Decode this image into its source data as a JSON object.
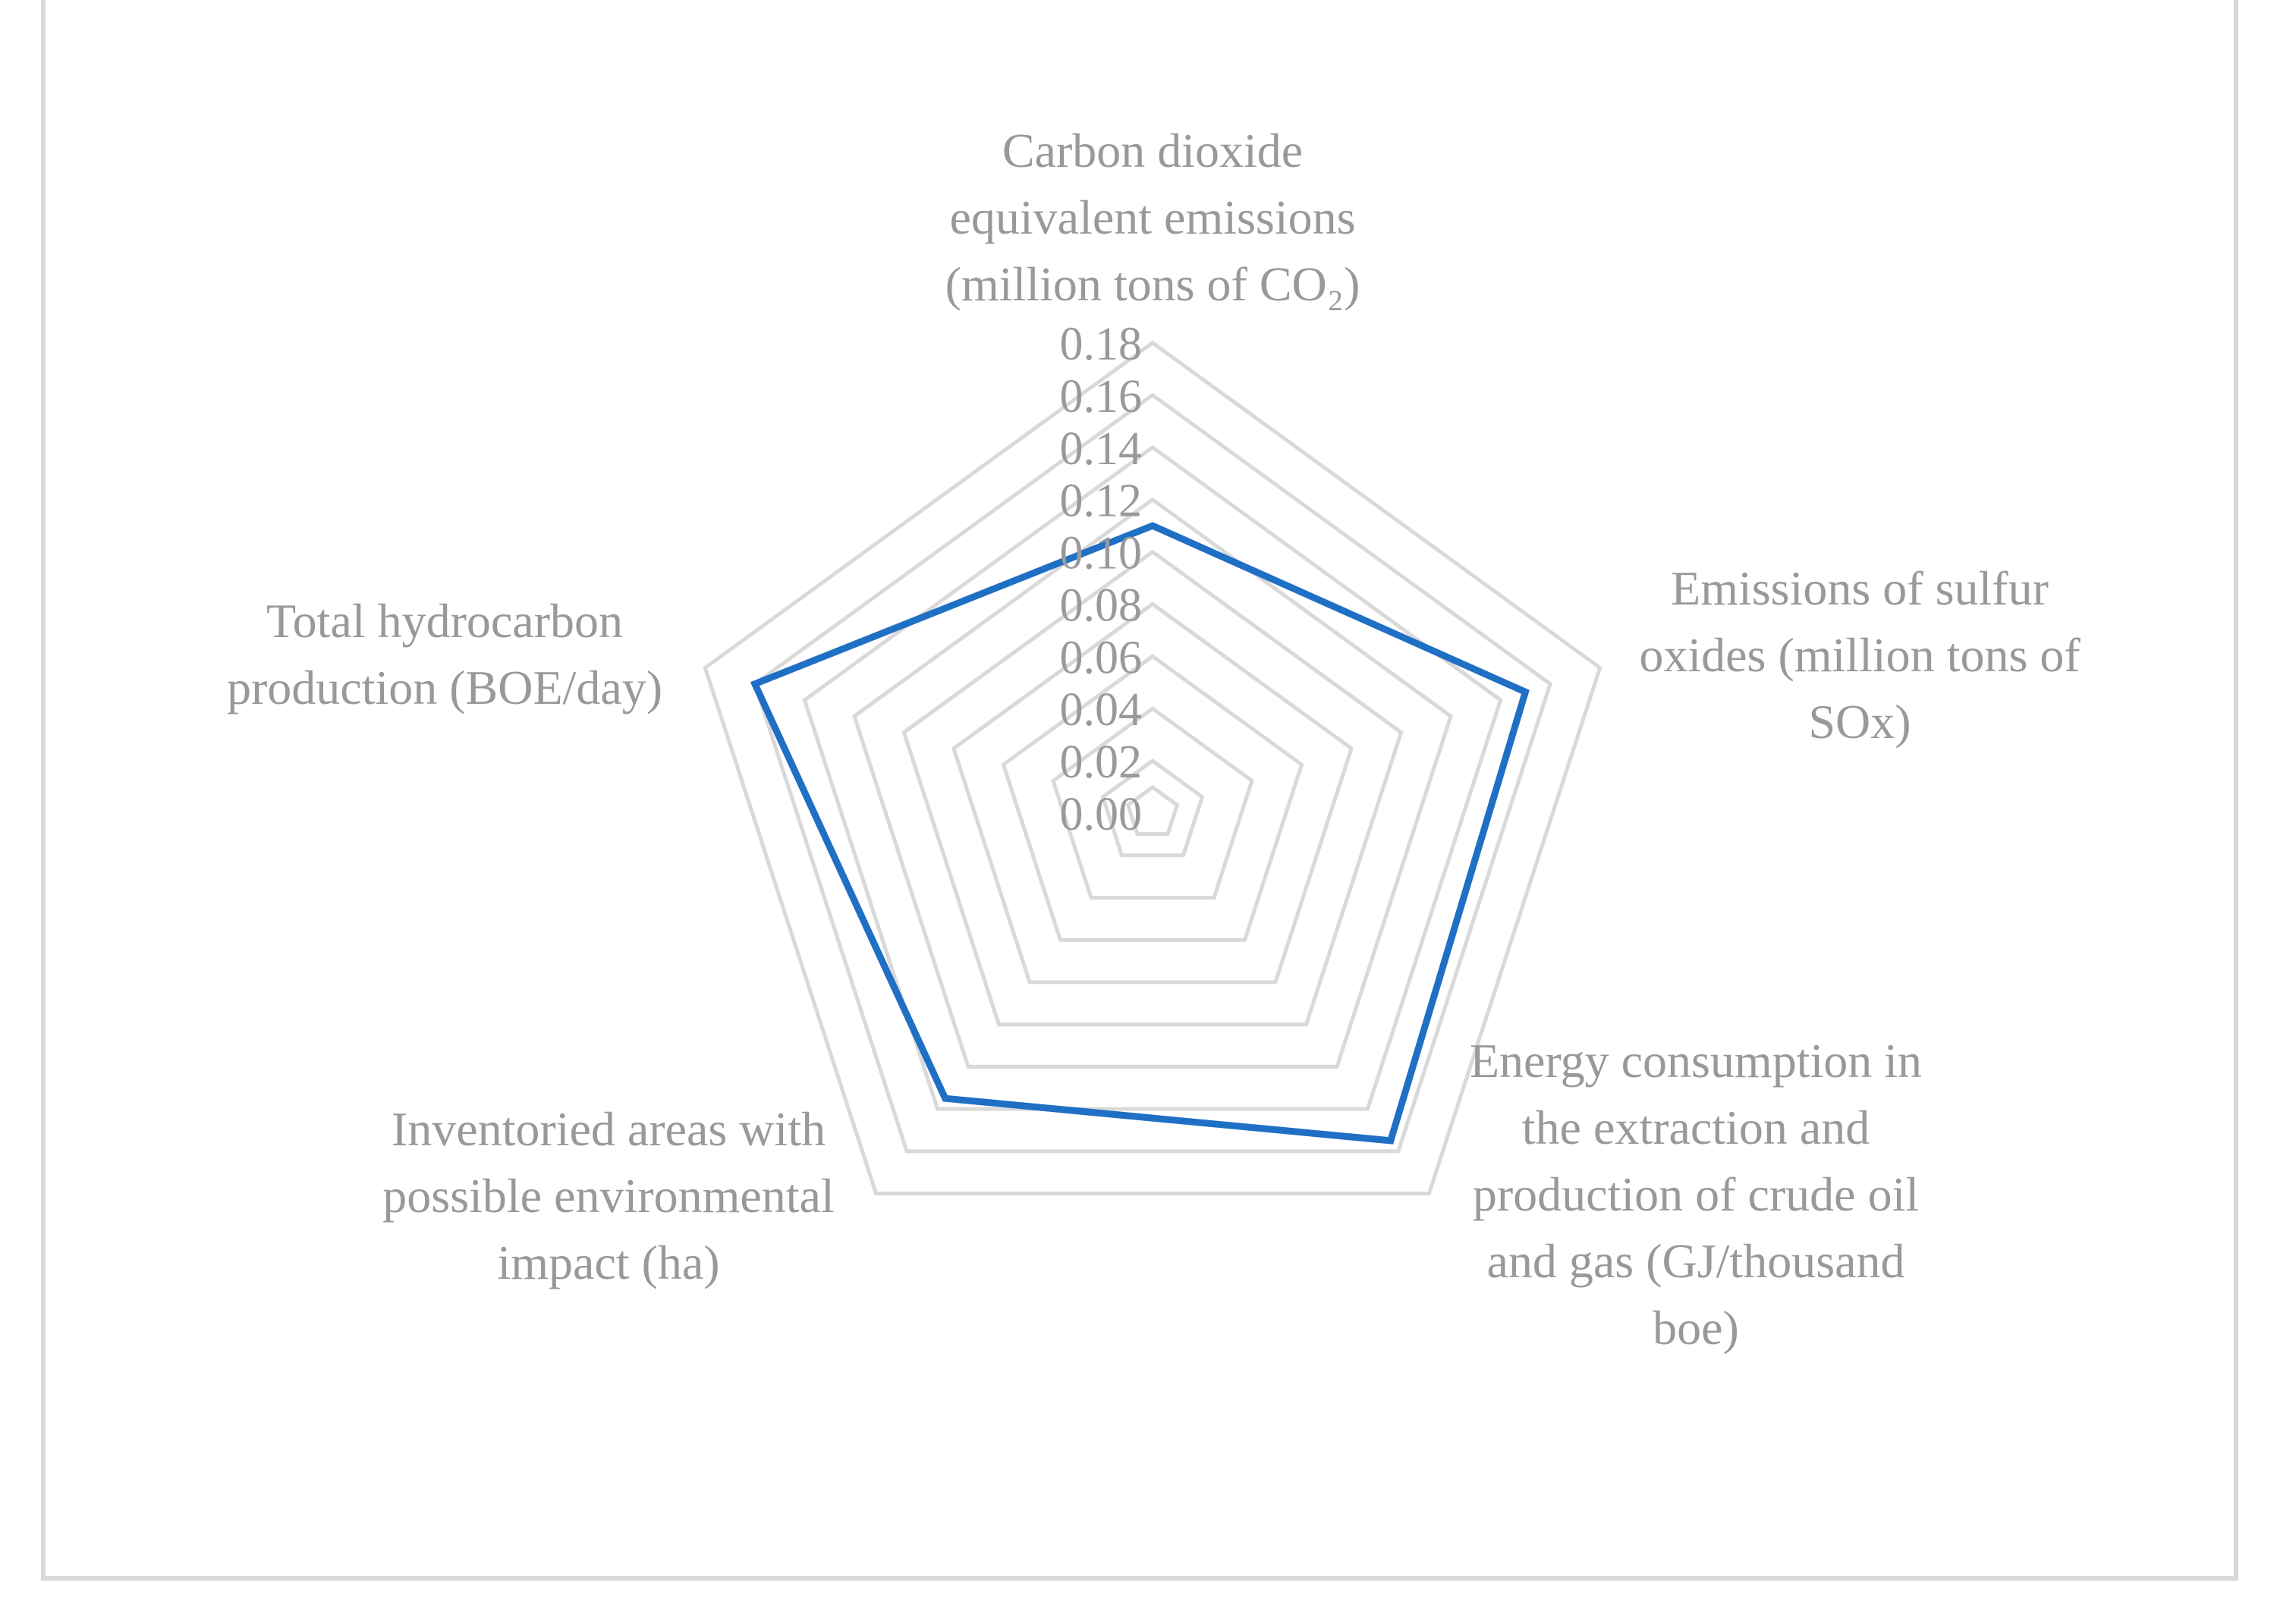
{
  "chart_data": {
    "type": "radar",
    "title": "",
    "axes": [
      {
        "lines": [
          "Carbon dioxide",
          "equivalent emissions",
          "(million tons of CO₂)"
        ]
      },
      {
        "lines": [
          "Emissions of sulfur",
          "oxides (million tons of",
          "SOx)"
        ]
      },
      {
        "lines": [
          "Energy consumption in",
          "the extraction and",
          "production of crude oil",
          "and gas (GJ/thousand",
          "boe)"
        ]
      },
      {
        "lines": [
          "Inventoried areas with",
          "possible environmental",
          "impact (ha)"
        ]
      },
      {
        "lines": [
          "Total hydrocarbon",
          "production (BOE/day)"
        ]
      }
    ],
    "ticks": [
      "0.00",
      "0.02",
      "0.04",
      "0.06",
      "0.08",
      "0.10",
      "0.12",
      "0.14",
      "0.16",
      "0.18"
    ],
    "rmin": 0,
    "rmax": 0.18,
    "series": [
      {
        "values": [
          0.11,
          0.15,
          0.155,
          0.135,
          0.16
        ],
        "color": "#1f6fc5"
      }
    ],
    "grid_color": "#d9d9d9",
    "text_color": "#999999"
  }
}
